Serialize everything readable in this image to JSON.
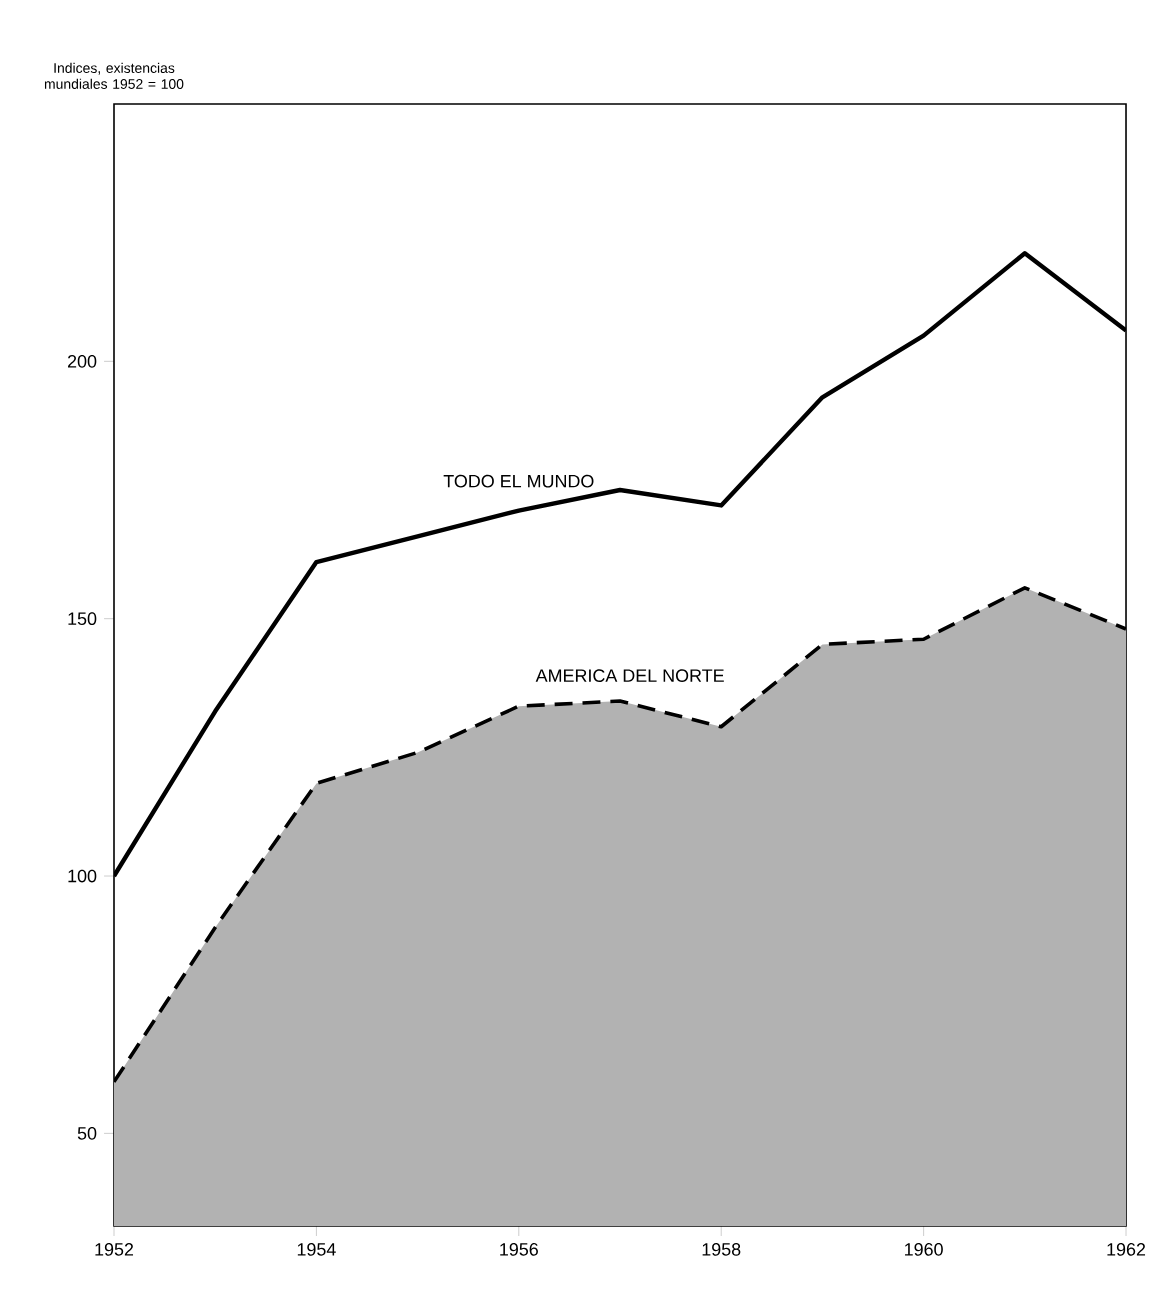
{
  "chart_data": {
    "type": "line",
    "ylabel": "Indices, existencias mundiales 1952 = 100",
    "x": [
      1952,
      1953,
      1954,
      1955,
      1956,
      1957,
      1958,
      1959,
      1960,
      1961,
      1962
    ],
    "series": [
      {
        "name": "TODO EL MUNDO",
        "color": "#000000",
        "line_style": "solid",
        "values": [
          100,
          132,
          161,
          166,
          171,
          175,
          172,
          193,
          205,
          221,
          206
        ]
      },
      {
        "name": "AMERICA DEL NORTE",
        "type": "area",
        "color": "#000000",
        "line_style": "dashed",
        "values": [
          60,
          90,
          118,
          124,
          133,
          134,
          129,
          145,
          146,
          156,
          148
        ]
      }
    ],
    "xlim": [
      1952,
      1962
    ],
    "xticks": [
      1952,
      1954,
      1956,
      1958,
      1960,
      1962
    ],
    "ylim": [
      32,
      250
    ],
    "yticks": [
      50,
      100,
      150,
      200
    ],
    "grid": false
  }
}
